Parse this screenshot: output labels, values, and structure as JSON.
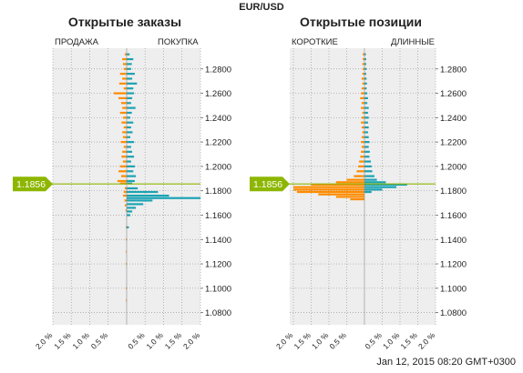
{
  "header": {
    "title": "EUR/USD"
  },
  "footer": {
    "timestamp": "Jan 12, 2015 08:20 GMT+0300"
  },
  "colors": {
    "sell": "#ff8c00",
    "buy": "#1aa3b3",
    "price_marker": "#8db600",
    "plot_bg": "#eeeeee"
  },
  "price_marker_label": "1.1856",
  "chart_data": [
    {
      "type": "bar",
      "title": "Открытые заказы",
      "left_label": "ПРОДАЖА",
      "right_label": "ПОКУПКА",
      "price_ticks": [
        "1.2800",
        "1.2600",
        "1.2400",
        "1.2200",
        "1.2000",
        "1.1800",
        "1.1600",
        "1.1400",
        "1.1200",
        "1.1000",
        "1.0800"
      ],
      "percent_ticks": [
        "2.0 %",
        "1.5 %",
        "1.0 %",
        "0.5 %",
        "0.5 %",
        "1.0 %",
        "1.5 %",
        "2.0 %"
      ],
      "ylim": [
        1.07,
        1.297
      ],
      "xlim": [
        -2.0,
        2.0
      ],
      "current_price": 1.1856,
      "grid": true,
      "series": [
        {
          "name": "ПРОДАЖА",
          "side": "left",
          "points": [
            [
              1.292,
              0.05
            ],
            [
              1.288,
              0.12
            ],
            [
              1.284,
              0.1
            ],
            [
              1.28,
              0.08
            ],
            [
              1.276,
              0.18
            ],
            [
              1.272,
              0.12
            ],
            [
              1.268,
              0.2
            ],
            [
              1.264,
              0.08
            ],
            [
              1.26,
              0.35
            ],
            [
              1.256,
              0.22
            ],
            [
              1.252,
              0.15
            ],
            [
              1.248,
              0.12
            ],
            [
              1.244,
              0.18
            ],
            [
              1.24,
              0.1
            ],
            [
              1.236,
              0.14
            ],
            [
              1.232,
              0.08
            ],
            [
              1.228,
              0.12
            ],
            [
              1.224,
              0.1
            ],
            [
              1.22,
              0.16
            ],
            [
              1.216,
              0.08
            ],
            [
              1.212,
              0.12
            ],
            [
              1.208,
              0.14
            ],
            [
              1.204,
              0.1
            ],
            [
              1.2,
              0.18
            ],
            [
              1.196,
              0.22
            ],
            [
              1.192,
              0.15
            ],
            [
              1.188,
              0.25
            ],
            [
              1.186,
              0.18
            ],
            [
              1.182,
              0.05
            ],
            [
              1.179,
              0.08
            ],
            [
              1.176,
              0.1
            ],
            [
              1.172,
              0.06
            ],
            [
              1.168,
              0.05
            ],
            [
              1.164,
              0.03
            ],
            [
              1.15,
              0.02
            ],
            [
              1.14,
              0.02
            ],
            [
              1.13,
              0.02
            ],
            [
              1.12,
              0.02
            ],
            [
              1.1,
              0.02
            ],
            [
              1.09,
              0.02
            ]
          ]
        },
        {
          "name": "ПОКУПКА",
          "side": "right",
          "points": [
            [
              1.292,
              0.08
            ],
            [
              1.288,
              0.18
            ],
            [
              1.284,
              0.14
            ],
            [
              1.28,
              0.12
            ],
            [
              1.276,
              0.22
            ],
            [
              1.272,
              0.15
            ],
            [
              1.268,
              0.28
            ],
            [
              1.264,
              0.18
            ],
            [
              1.26,
              0.2
            ],
            [
              1.256,
              0.15
            ],
            [
              1.252,
              0.12
            ],
            [
              1.248,
              0.24
            ],
            [
              1.244,
              0.14
            ],
            [
              1.24,
              0.1
            ],
            [
              1.236,
              0.18
            ],
            [
              1.232,
              0.12
            ],
            [
              1.228,
              0.16
            ],
            [
              1.224,
              0.1
            ],
            [
              1.22,
              0.2
            ],
            [
              1.216,
              0.12
            ],
            [
              1.212,
              0.15
            ],
            [
              1.208,
              0.2
            ],
            [
              1.204,
              0.12
            ],
            [
              1.2,
              0.22
            ],
            [
              1.196,
              0.18
            ],
            [
              1.192,
              0.25
            ],
            [
              1.188,
              0.22
            ],
            [
              1.186,
              0.15
            ],
            [
              1.182,
              0.3
            ],
            [
              1.179,
              0.85
            ],
            [
              1.176,
              1.15
            ],
            [
              1.174,
              2.0
            ],
            [
              1.172,
              0.7
            ],
            [
              1.169,
              0.45
            ],
            [
              1.166,
              0.25
            ],
            [
              1.163,
              0.15
            ],
            [
              1.16,
              0.1
            ],
            [
              1.15,
              0.06
            ]
          ]
        }
      ]
    },
    {
      "type": "bar",
      "title": "Открытые позиции",
      "left_label": "КОРОТКИЕ",
      "right_label": "ДЛИННЫЕ",
      "price_ticks": [
        "1.2800",
        "1.2600",
        "1.2400",
        "1.2200",
        "1.2000",
        "1.1800",
        "1.1600",
        "1.1400",
        "1.1200",
        "1.1000",
        "1.0800"
      ],
      "percent_ticks": [
        "2.0 %",
        "1.5 %",
        "1.0 %",
        "0.5 %",
        "0.5 %",
        "1.0 %",
        "1.5 %",
        "2.0 %"
      ],
      "ylim": [
        1.07,
        1.297
      ],
      "xlim": [
        -2.0,
        2.0
      ],
      "current_price": 1.1856,
      "grid": true,
      "series": [
        {
          "name": "КОРОТКИЕ",
          "side": "left",
          "points": [
            [
              1.292,
              0.05
            ],
            [
              1.288,
              0.05
            ],
            [
              1.284,
              0.06
            ],
            [
              1.28,
              0.05
            ],
            [
              1.276,
              0.06
            ],
            [
              1.272,
              0.08
            ],
            [
              1.268,
              0.06
            ],
            [
              1.264,
              0.08
            ],
            [
              1.26,
              0.1
            ],
            [
              1.256,
              0.12
            ],
            [
              1.252,
              0.08
            ],
            [
              1.248,
              0.1
            ],
            [
              1.244,
              0.06
            ],
            [
              1.24,
              0.08
            ],
            [
              1.236,
              0.1
            ],
            [
              1.232,
              0.08
            ],
            [
              1.228,
              0.06
            ],
            [
              1.224,
              0.08
            ],
            [
              1.22,
              0.1
            ],
            [
              1.216,
              0.08
            ],
            [
              1.212,
              0.1
            ],
            [
              1.208,
              0.12
            ],
            [
              1.204,
              0.15
            ],
            [
              1.2,
              0.18
            ],
            [
              1.196,
              0.22
            ],
            [
              1.192,
              0.3
            ],
            [
              1.189,
              0.5
            ],
            [
              1.187,
              0.8
            ],
            [
              1.185,
              1.5
            ],
            [
              1.183,
              2.0
            ],
            [
              1.181,
              2.0
            ],
            [
              1.179,
              1.9
            ],
            [
              1.177,
              1.3
            ],
            [
              1.175,
              0.8
            ],
            [
              1.173,
              0.4
            ]
          ]
        },
        {
          "name": "ДЛИННЫЕ",
          "side": "right",
          "points": [
            [
              1.292,
              0.04
            ],
            [
              1.288,
              0.05
            ],
            [
              1.284,
              0.05
            ],
            [
              1.28,
              0.06
            ],
            [
              1.276,
              0.05
            ],
            [
              1.272,
              0.06
            ],
            [
              1.268,
              0.07
            ],
            [
              1.264,
              0.06
            ],
            [
              1.26,
              0.08
            ],
            [
              1.256,
              0.1
            ],
            [
              1.252,
              0.08
            ],
            [
              1.248,
              0.12
            ],
            [
              1.244,
              0.1
            ],
            [
              1.24,
              0.12
            ],
            [
              1.236,
              0.1
            ],
            [
              1.232,
              0.12
            ],
            [
              1.228,
              0.1
            ],
            [
              1.224,
              0.12
            ],
            [
              1.22,
              0.14
            ],
            [
              1.216,
              0.12
            ],
            [
              1.212,
              0.15
            ],
            [
              1.208,
              0.14
            ],
            [
              1.204,
              0.18
            ],
            [
              1.2,
              0.2
            ],
            [
              1.196,
              0.22
            ],
            [
              1.192,
              0.28
            ],
            [
              1.189,
              0.35
            ],
            [
              1.187,
              0.6
            ],
            [
              1.185,
              1.2
            ],
            [
              1.183,
              0.9
            ],
            [
              1.181,
              0.5
            ],
            [
              1.179,
              0.2
            ]
          ]
        }
      ]
    }
  ]
}
